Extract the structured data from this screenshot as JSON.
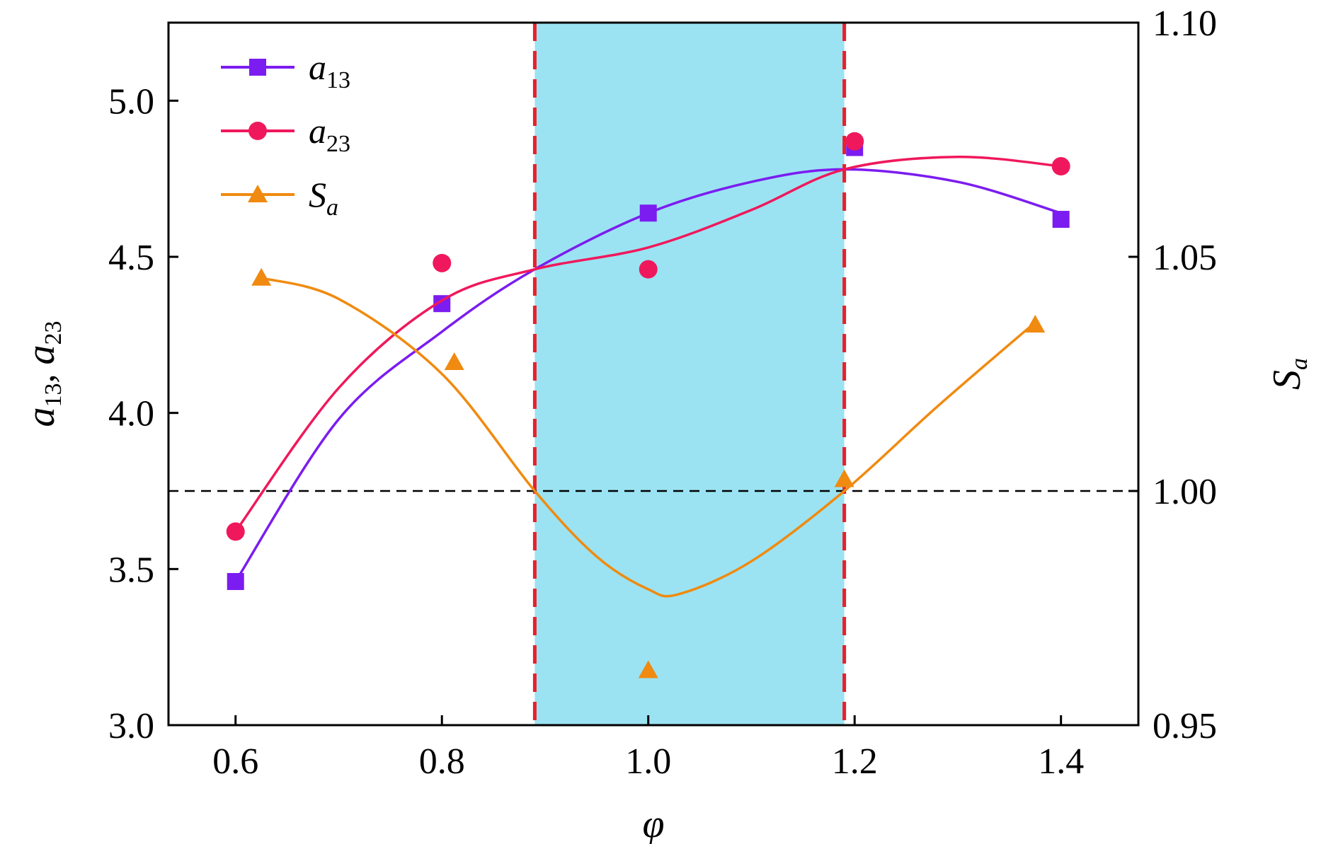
{
  "chart_data": {
    "type": "line",
    "x_label": "φ",
    "y_label_left": {
      "parts": [
        "a",
        "13",
        ", ",
        "a",
        "23"
      ]
    },
    "y_label_right": {
      "parts": [
        "S",
        "a"
      ]
    },
    "x_ticks": [
      "0.6",
      "0.8",
      "1.0",
      "1.2",
      "1.4"
    ],
    "y_ticks_left": [
      "3.0",
      "3.5",
      "4.0",
      "4.5",
      "5.0"
    ],
    "y_ticks_right": [
      "0.95",
      "1.00",
      "1.05",
      "1.10"
    ],
    "x_range": [
      0.535,
      1.475
    ],
    "y_range_left": [
      3.0,
      5.25
    ],
    "y_range_right": [
      0.95,
      1.1
    ],
    "shaded_region": {
      "x": [
        0.89,
        1.19
      ],
      "color": "#9be3f2"
    },
    "vertical_lines": [
      0.89,
      1.19
    ],
    "reference_line_right": 1.0,
    "legend_position": "top-left",
    "series": [
      {
        "name": "a13",
        "legend": {
          "base": "a",
          "sub": "13",
          "sub_italic": false
        },
        "axis": "left",
        "color": "#7b1cf0",
        "marker": "square",
        "points": [
          [
            0.6,
            3.46
          ],
          [
            0.8,
            4.35
          ],
          [
            1.0,
            4.64
          ],
          [
            1.2,
            4.85
          ],
          [
            1.4,
            4.62
          ]
        ],
        "curve": [
          [
            0.6,
            3.46
          ],
          [
            0.7,
            3.98
          ],
          [
            0.8,
            4.26
          ],
          [
            0.89,
            4.46
          ],
          [
            1.0,
            4.64
          ],
          [
            1.1,
            4.74
          ],
          [
            1.19,
            4.78
          ],
          [
            1.3,
            4.74
          ],
          [
            1.4,
            4.64
          ]
        ]
      },
      {
        "name": "a23",
        "legend": {
          "base": "a",
          "sub": "23",
          "sub_italic": false
        },
        "axis": "left",
        "color": "#f0185c",
        "marker": "circle",
        "points": [
          [
            0.6,
            3.62
          ],
          [
            0.8,
            4.48
          ],
          [
            1.0,
            4.46
          ],
          [
            1.2,
            4.87
          ],
          [
            1.4,
            4.79
          ]
        ],
        "curve": [
          [
            0.6,
            3.62
          ],
          [
            0.7,
            4.08
          ],
          [
            0.8,
            4.36
          ],
          [
            0.89,
            4.46
          ],
          [
            1.0,
            4.53
          ],
          [
            1.1,
            4.65
          ],
          [
            1.19,
            4.78
          ],
          [
            1.3,
            4.82
          ],
          [
            1.4,
            4.79
          ]
        ]
      },
      {
        "name": "Sa",
        "legend": {
          "base": "S",
          "sub": "a",
          "sub_italic": true
        },
        "axis": "right",
        "color": "#f08a10",
        "marker": "triangle",
        "points": [
          [
            0.625,
            1.0455
          ],
          [
            0.812,
            1.0275
          ],
          [
            1.0,
            0.9617
          ],
          [
            1.19,
            1.0025
          ],
          [
            1.375,
            1.0355
          ]
        ],
        "curve": [
          [
            0.625,
            1.0455
          ],
          [
            0.7,
            1.041
          ],
          [
            0.8,
            1.025
          ],
          [
            0.89,
            1.0
          ],
          [
            0.95,
            0.986
          ],
          [
            1.0,
            0.979
          ],
          [
            1.03,
            0.978
          ],
          [
            1.1,
            0.985
          ],
          [
            1.19,
            1.0
          ],
          [
            1.28,
            1.018
          ],
          [
            1.375,
            1.036
          ]
        ]
      }
    ]
  }
}
